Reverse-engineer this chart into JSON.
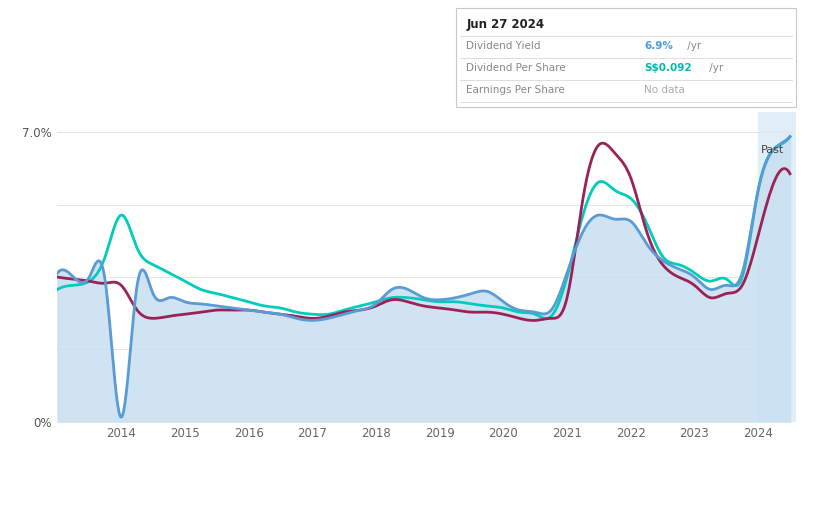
{
  "years_raw": [
    2013.0,
    2013.25,
    2013.5,
    2013.75,
    2014.0,
    2014.25,
    2014.5,
    2014.75,
    2015.0,
    2015.25,
    2015.5,
    2015.75,
    2016.0,
    2016.25,
    2016.5,
    2016.75,
    2017.0,
    2017.25,
    2017.5,
    2017.75,
    2018.0,
    2018.25,
    2018.5,
    2018.75,
    2019.0,
    2019.25,
    2019.5,
    2019.75,
    2020.0,
    2020.25,
    2020.5,
    2020.75,
    2021.0,
    2021.25,
    2021.5,
    2021.75,
    2022.0,
    2022.25,
    2022.5,
    2022.75,
    2023.0,
    2023.25,
    2023.5,
    2023.75,
    2024.0,
    2024.25,
    2024.5
  ],
  "div_yield": [
    3.6,
    3.5,
    3.5,
    3.4,
    0.1,
    3.3,
    3.1,
    3.0,
    2.9,
    2.85,
    2.8,
    2.75,
    2.7,
    2.65,
    2.6,
    2.5,
    2.45,
    2.5,
    2.6,
    2.7,
    2.85,
    3.2,
    3.2,
    3.0,
    2.95,
    3.0,
    3.1,
    3.15,
    2.9,
    2.7,
    2.65,
    2.7,
    3.6,
    4.6,
    5.0,
    4.9,
    4.85,
    4.3,
    3.9,
    3.7,
    3.5,
    3.2,
    3.3,
    3.6,
    5.6,
    6.6,
    6.9
  ],
  "div_per_share": [
    3.2,
    3.3,
    3.4,
    4.0,
    5.0,
    4.2,
    3.8,
    3.6,
    3.4,
    3.2,
    3.1,
    3.0,
    2.9,
    2.8,
    2.75,
    2.65,
    2.6,
    2.6,
    2.7,
    2.8,
    2.9,
    3.0,
    3.0,
    2.95,
    2.9,
    2.9,
    2.85,
    2.8,
    2.75,
    2.65,
    2.6,
    2.55,
    3.5,
    5.0,
    5.8,
    5.6,
    5.4,
    4.8,
    4.0,
    3.8,
    3.6,
    3.4,
    3.45,
    3.5,
    5.6,
    6.6,
    6.9
  ],
  "earnings_per_share": [
    3.5,
    3.45,
    3.4,
    3.35,
    3.3,
    2.7,
    2.5,
    2.55,
    2.6,
    2.65,
    2.7,
    2.7,
    2.7,
    2.65,
    2.6,
    2.55,
    2.5,
    2.55,
    2.65,
    2.7,
    2.8,
    2.95,
    2.9,
    2.8,
    2.75,
    2.7,
    2.65,
    2.65,
    2.6,
    2.5,
    2.45,
    2.5,
    3.0,
    5.4,
    6.7,
    6.5,
    5.9,
    4.6,
    3.8,
    3.5,
    3.3,
    3.0,
    3.1,
    3.3,
    4.5,
    5.8,
    6.0
  ],
  "past_start": 2024.0,
  "x_ticks": [
    2014,
    2015,
    2016,
    2017,
    2018,
    2019,
    2020,
    2021,
    2022,
    2023,
    2024
  ],
  "ylim": [
    0,
    7.5
  ],
  "xlim": [
    2013.0,
    2024.6
  ],
  "color_yield": "#5B9BD5",
  "color_dps": "#00CCBB",
  "color_eps": "#9B2257",
  "fill_color": "#C8DFF0",
  "past_fill_color": "#D4E8F5",
  "bg_color": "#FFFFFF",
  "grid_color": "#E5E5E5",
  "info_box": {
    "date": "Jun 27 2024",
    "div_yield_val": "6.9%",
    "div_yield_unit": " /yr",
    "dps_val": "S$0.092",
    "dps_unit": " /yr",
    "eps_val": "No data"
  },
  "legend": [
    {
      "label": "Dividend Yield",
      "color": "#5B9BD5"
    },
    {
      "label": "Dividend Per Share",
      "color": "#00CCBB"
    },
    {
      "label": "Earnings Per Share",
      "color": "#9B2257"
    }
  ]
}
